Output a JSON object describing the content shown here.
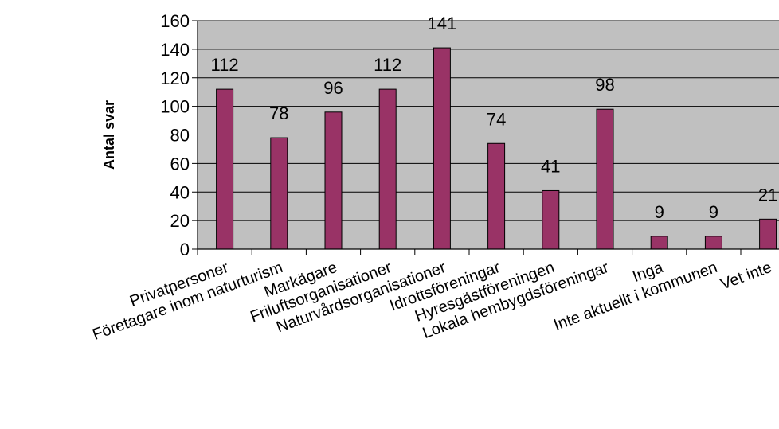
{
  "chart_data": {
    "type": "bar",
    "title": "",
    "xlabel": "",
    "ylabel": "Antal svar",
    "ylim": [
      0,
      160
    ],
    "yticks": [
      0,
      20,
      40,
      60,
      80,
      100,
      120,
      140,
      160
    ],
    "grid": true,
    "legend": "none",
    "categories": [
      "Privatpersoner",
      "Företagare inom naturturism",
      "Markägare",
      "Friluftsorganisationer",
      "Naturvårdsorganisationer",
      "Idrottsföreningar",
      "Hyresgästföreningen",
      "Lokala hembygdsföreningar",
      "Inga",
      "Inte aktuellt i kommunen",
      "Vet inte"
    ],
    "values": [
      112,
      78,
      96,
      112,
      141,
      74,
      41,
      98,
      9,
      9,
      21
    ],
    "colors": {
      "plot_background": "#c0c0c0",
      "bar_fill": "#993366",
      "bar_stroke": "#000000",
      "gridline": "#000000"
    }
  }
}
